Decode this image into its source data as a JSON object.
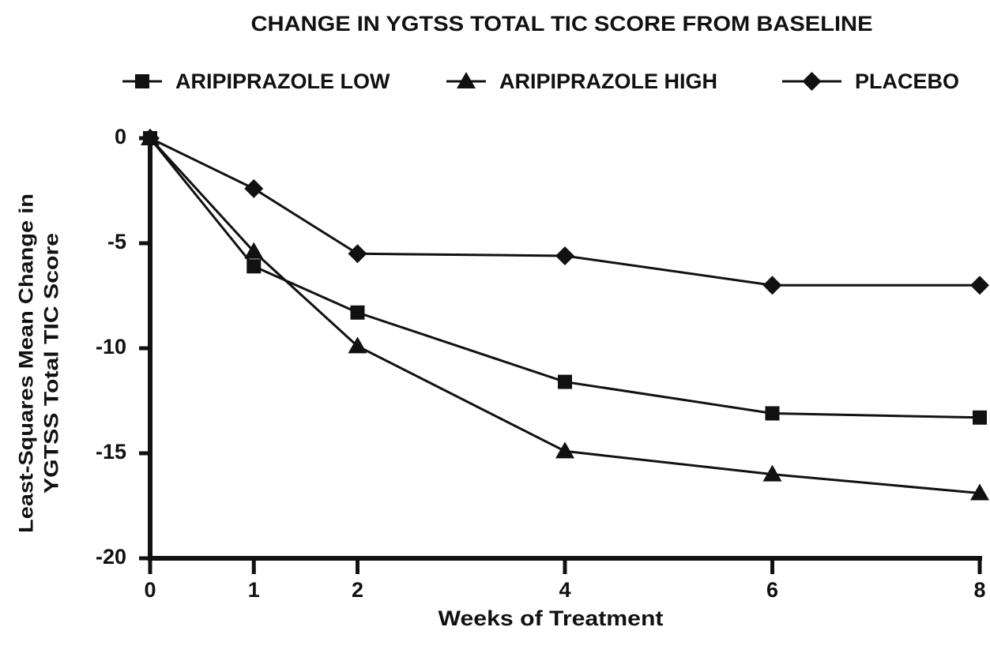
{
  "chart_data": {
    "type": "line",
    "title": "CHANGE IN YGTSS TOTAL TIC SCORE FROM BASELINE",
    "xlabel": "Weeks of Treatment",
    "ylabel": [
      "Least-Squares Mean Change in",
      "YGTSS Total TIC Score"
    ],
    "x": [
      0,
      1,
      2,
      4,
      6,
      8
    ],
    "xlim": [
      0,
      8
    ],
    "xticks": [
      0,
      1,
      2,
      4,
      6,
      8
    ],
    "ylim": [
      -20,
      0
    ],
    "yticks": [
      0,
      -5,
      -10,
      -15,
      -20
    ],
    "grid": false,
    "legend": "top",
    "series": [
      {
        "name": "ARIPIPRAZOLE LOW",
        "color": "#111111",
        "marker": "square",
        "values": [
          0,
          -6.1,
          -8.3,
          -11.6,
          -13.1,
          -13.3
        ]
      },
      {
        "name": "ARIPIPRAZOLE HIGH",
        "color": "#111111",
        "marker": "triangle",
        "values": [
          0,
          -5.4,
          -9.9,
          -14.9,
          -16.0,
          -16.9
        ]
      },
      {
        "name": "PLACEBO",
        "color": "#111111",
        "marker": "diamond",
        "values": [
          0,
          -2.4,
          -5.5,
          -5.6,
          -7.0,
          -7.0
        ]
      }
    ]
  }
}
